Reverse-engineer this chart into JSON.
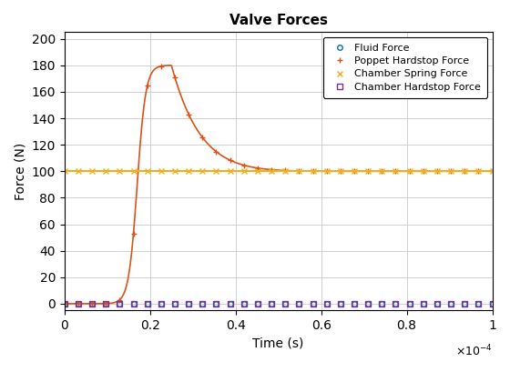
{
  "title": "Valve Forces",
  "xlabel": "Time (s)",
  "ylabel": "Force (N)",
  "xlim": [
    0,
    0.0001
  ],
  "ylim": [
    -5,
    205
  ],
  "yticks": [
    0,
    20,
    40,
    60,
    80,
    100,
    120,
    140,
    160,
    180,
    200
  ],
  "xticks": [
    0,
    2e-05,
    4e-05,
    6e-05,
    8e-05,
    0.0001
  ],
  "xtick_labels": [
    "0",
    "0.2",
    "0.4",
    "0.6",
    "0.8",
    "1"
  ],
  "grid": true,
  "legend_loc": "upper right",
  "series": [
    {
      "label": "Fluid Force",
      "color": "#0072BD",
      "linestyle": "none",
      "marker": "o",
      "markersize": 4,
      "linewidth": 1.0,
      "markerfacecolor": "none"
    },
    {
      "label": "Poppet Hardstop Force",
      "color": "#D95319",
      "linestyle": "-",
      "marker": "+",
      "markersize": 5,
      "linewidth": 1.2,
      "markerfacecolor": "auto"
    },
    {
      "label": "Chamber Spring Force",
      "color": "#EDB120",
      "linestyle": "-",
      "marker": "x",
      "markersize": 5,
      "linewidth": 1.5,
      "markerfacecolor": "auto"
    },
    {
      "label": "Chamber Hardstop Force",
      "color": "#7E2F8E",
      "linestyle": "none",
      "marker": "s",
      "markersize": 5,
      "linewidth": 1.0,
      "markerfacecolor": "none"
    }
  ]
}
